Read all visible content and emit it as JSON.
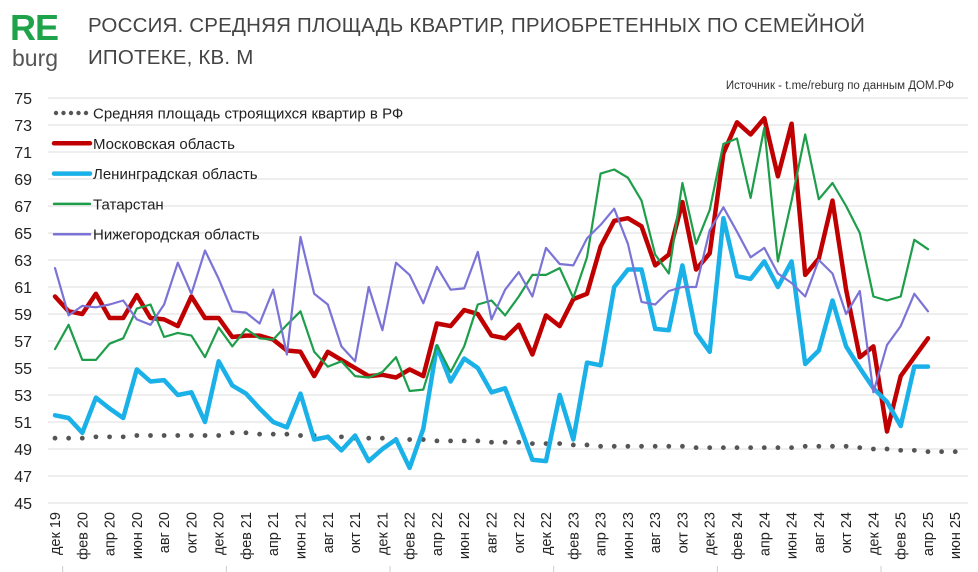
{
  "header": {
    "logo_top": "RE",
    "logo_bottom": "burg",
    "title": "РОССИЯ. СРЕДНЯЯ ПЛОЩАДЬ КВАРТИР, ПРИОБРЕТЕННЫХ ПО СЕМЕЙНОЙ ИПОТЕКЕ, КВ. М",
    "source": "Источник - t.me/reburg по данным ДОМ.РФ",
    "logo_color": "#1fa34a"
  },
  "chart_data": {
    "type": "line",
    "title": "РОССИЯ. СРЕДНЯЯ ПЛОЩАДЬ КВАРТИР, ПРИОБРЕТЕННЫХ ПО СЕМЕЙНОЙ ИПОТЕКЕ, КВ. М",
    "ylim": [
      45,
      75
    ],
    "yticks": [
      45,
      47,
      49,
      51,
      53,
      55,
      57,
      59,
      61,
      63,
      65,
      67,
      69,
      71,
      73,
      75
    ],
    "grid": true,
    "legend_position": "top-left",
    "x_start": "дек 19",
    "x_tick_labels": [
      "дек 19",
      "фев 20",
      "апр 20",
      "июн 20",
      "авг 20",
      "окт 20",
      "дек 20",
      "фев 21",
      "апр 21",
      "июн 21",
      "авг 21",
      "окт 21",
      "дек 21",
      "фев 22",
      "апр 22",
      "июн 22",
      "авг 22",
      "окт 22",
      "дек 22",
      "фев 23",
      "апр 23",
      "июн 23",
      "авг 23",
      "окт 23",
      "дек 23",
      "фев 24",
      "апр 24",
      "июн 24",
      "авг 24",
      "окт 24",
      "дек 24",
      "фев 25",
      "апр 25",
      "июн 25"
    ],
    "series": [
      {
        "name": "Средняя площадь строящихся квартир в РФ",
        "color": "#555555",
        "style": "dotted",
        "values": [
          49.8,
          49.8,
          49.8,
          49.9,
          49.9,
          49.9,
          50.0,
          50.0,
          50.0,
          50.0,
          50.0,
          50.0,
          50.0,
          50.2,
          50.2,
          50.1,
          50.1,
          50.1,
          50.0,
          50.0,
          49.9,
          49.9,
          49.8,
          49.8,
          49.8,
          49.7,
          49.7,
          49.7,
          49.6,
          49.6,
          49.6,
          49.6,
          49.5,
          49.5,
          49.5,
          49.4,
          49.4,
          49.4,
          49.3,
          49.3,
          49.2,
          49.2,
          49.2,
          49.2,
          49.2,
          49.2,
          49.2,
          49.1,
          49.1,
          49.1,
          49.1,
          49.1,
          49.1,
          49.1,
          49.1,
          49.2,
          49.2,
          49.2,
          49.2,
          49.1,
          49.0,
          49.0,
          48.9,
          48.9,
          48.8,
          48.8,
          48.8
        ]
      },
      {
        "name": "Московская область",
        "color": "#c00000",
        "style": "thick",
        "values": [
          60.3,
          59.2,
          59.0,
          60.5,
          58.7,
          58.7,
          60.4,
          58.7,
          58.6,
          58.1,
          60.3,
          58.7,
          58.7,
          57.3,
          57.4,
          57.4,
          57.1,
          56.3,
          56.2,
          54.4,
          56.2,
          55.6,
          55.0,
          54.4,
          54.5,
          54.3,
          54.9,
          54.4,
          58.3,
          58.1,
          59.3,
          59.0,
          57.4,
          57.2,
          58.2,
          56.0,
          58.9,
          58.1,
          60.1,
          60.5,
          64.0,
          65.9,
          66.1,
          65.5,
          62.6,
          63.4,
          67.3,
          62.3,
          63.5,
          70.9,
          73.2,
          72.3,
          73.5,
          69.2,
          73.1,
          61.9,
          63.1,
          67.4,
          60.8,
          55.8,
          56.6,
          50.3,
          54.4,
          55.8,
          57.2
        ]
      },
      {
        "name": "Ленинградская область",
        "color": "#1ab0e8",
        "style": "thick",
        "values": [
          51.5,
          51.3,
          50.2,
          52.8,
          52.0,
          51.3,
          54.9,
          54.0,
          54.1,
          53.0,
          53.2,
          51.0,
          55.5,
          53.7,
          53.1,
          52.0,
          51.0,
          50.6,
          53.1,
          49.7,
          49.9,
          48.9,
          50.0,
          48.1,
          49.0,
          49.7,
          47.6,
          50.5,
          56.6,
          54.0,
          55.7,
          55.0,
          53.2,
          53.5,
          50.9,
          48.2,
          48.1,
          53.0,
          49.7,
          55.4,
          55.2,
          61.0,
          62.3,
          62.3,
          57.9,
          57.8,
          62.6,
          57.6,
          56.2,
          66.1,
          61.8,
          61.6,
          62.9,
          61.0,
          62.9,
          55.3,
          56.3,
          60.0,
          56.6,
          55.0,
          53.5,
          52.5,
          50.7,
          55.1,
          55.1
        ]
      },
      {
        "name": "Татарстан",
        "color": "#1e9e4a",
        "style": "thin",
        "values": [
          56.4,
          58.2,
          55.6,
          55.6,
          56.8,
          57.2,
          59.4,
          59.7,
          57.3,
          57.6,
          57.4,
          55.8,
          58.0,
          56.6,
          57.9,
          57.2,
          57.1,
          58.2,
          59.2,
          56.2,
          55.1,
          55.5,
          54.4,
          54.3,
          54.7,
          55.8,
          53.3,
          53.4,
          56.7,
          54.7,
          56.6,
          59.7,
          60.0,
          58.9,
          60.3,
          61.9,
          61.9,
          62.4,
          60.2,
          63.2,
          69.4,
          69.7,
          69.1,
          67.4,
          63.4,
          62.0,
          68.7,
          64.2,
          66.7,
          71.6,
          72.0,
          67.6,
          72.8,
          62.9,
          67.4,
          72.3,
          67.5,
          68.7,
          67.0,
          65.0,
          60.3,
          60.0,
          60.3,
          64.5,
          63.8
        ]
      },
      {
        "name": "Нижегородская область",
        "color": "#7b74d6",
        "style": "thin",
        "values": [
          62.4,
          58.9,
          59.6,
          59.5,
          59.7,
          60.0,
          58.6,
          58.2,
          59.7,
          62.8,
          60.5,
          63.7,
          61.6,
          59.2,
          59.1,
          58.3,
          60.8,
          56.0,
          64.7,
          60.5,
          59.7,
          56.6,
          55.5,
          61.0,
          57.8,
          62.8,
          61.9,
          59.8,
          62.5,
          60.8,
          60.9,
          63.6,
          58.6,
          60.8,
          62.1,
          60.3,
          63.9,
          62.7,
          62.6,
          64.6,
          65.6,
          66.8,
          64.2,
          59.9,
          59.7,
          60.7,
          61.0,
          61.0,
          65.2,
          66.9,
          65.1,
          63.2,
          63.9,
          62.0,
          61.3,
          60.3,
          63.0,
          62.0,
          59.0,
          60.7,
          53.2,
          56.7,
          58.1,
          60.5,
          59.2
        ]
      }
    ]
  }
}
